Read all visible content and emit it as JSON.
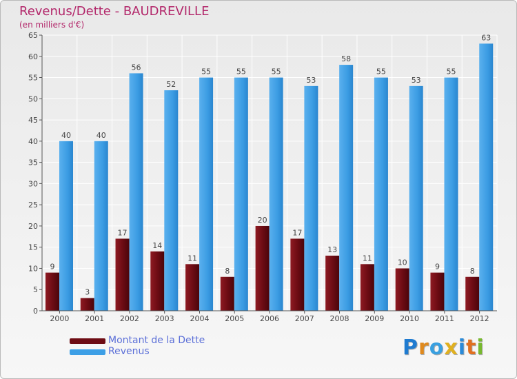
{
  "chart_data": {
    "type": "bar",
    "title": "Revenus/Dette - BAUDREVILLE",
    "subtitle": "(en milliers d'€)",
    "categories": [
      "2000",
      "2001",
      "2002",
      "2003",
      "2004",
      "2005",
      "2006",
      "2007",
      "2008",
      "2009",
      "2010",
      "2011",
      "2012"
    ],
    "series": [
      {
        "name": "Montant de la Dette",
        "color": "#7a0f18",
        "values": [
          9,
          3,
          17,
          14,
          11,
          8,
          20,
          17,
          13,
          11,
          10,
          9,
          8
        ]
      },
      {
        "name": "Revenus",
        "color": "#3d9fe6",
        "values": [
          40,
          40,
          56,
          52,
          55,
          55,
          55,
          53,
          58,
          55,
          53,
          55,
          63
        ]
      }
    ],
    "ylim": [
      0,
      65
    ],
    "yticks": [
      0,
      5,
      10,
      15,
      20,
      25,
      30,
      35,
      40,
      45,
      50,
      55,
      60,
      65
    ],
    "grid": true,
    "legend": "bottom-left"
  },
  "brand": {
    "letters": [
      "P",
      "r",
      "o",
      "x",
      "i",
      "t",
      "i"
    ],
    "colors": [
      "#1f7bd0",
      "#e08a1e",
      "#3aa0e0",
      "#e0b020",
      "#2a8ad8",
      "#e07020",
      "#78b830"
    ]
  }
}
